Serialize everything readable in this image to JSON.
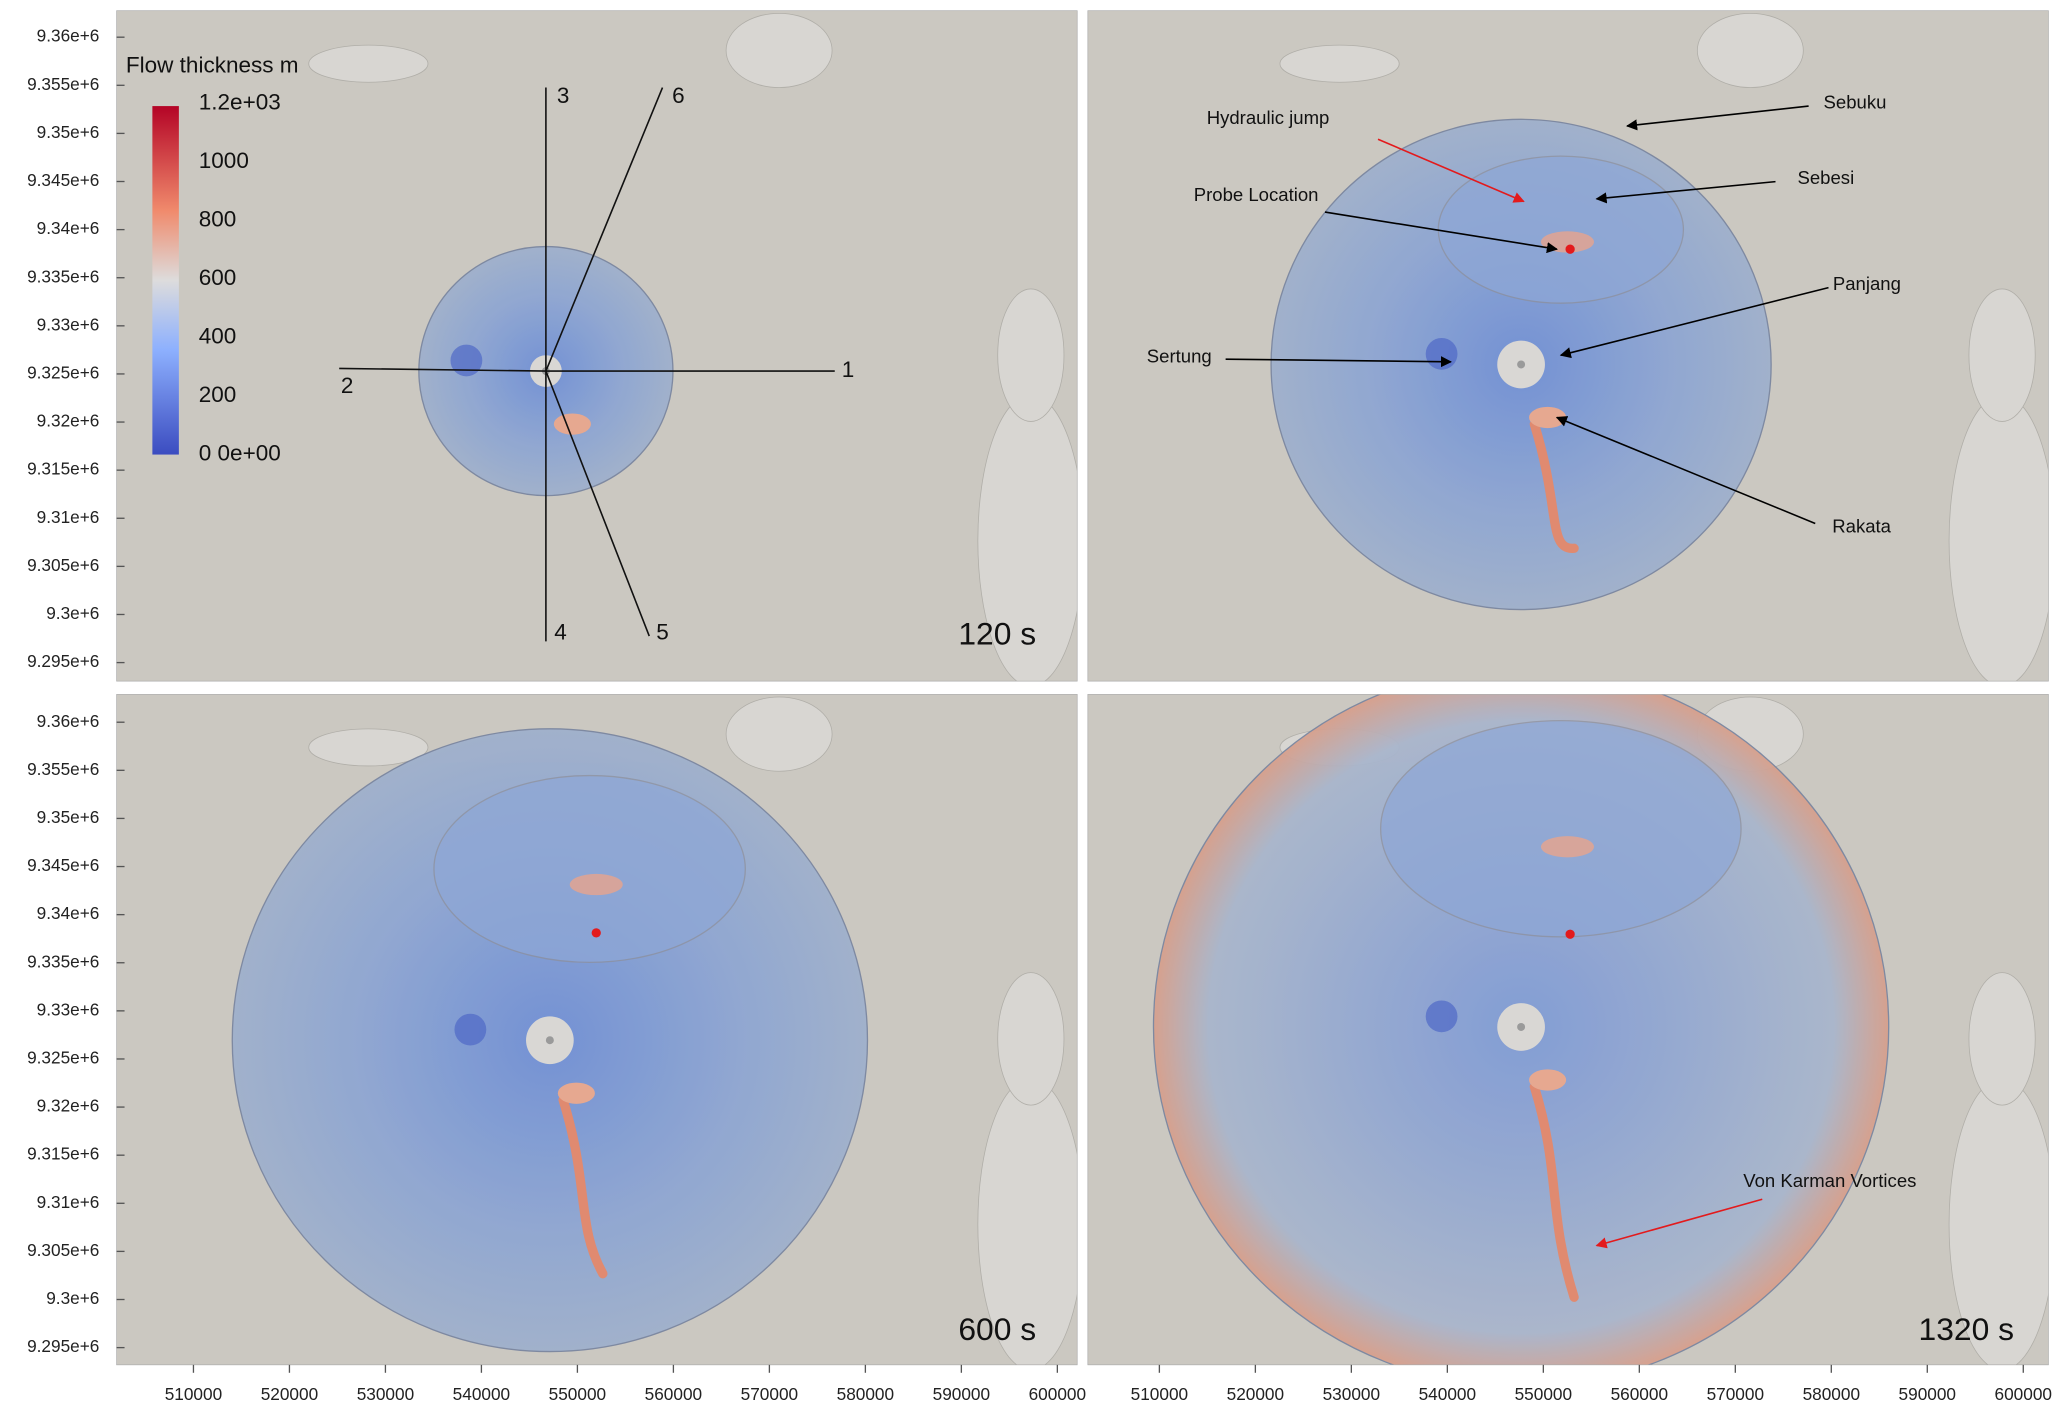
{
  "colorbar": {
    "title": "Flow thickness m",
    "labels": [
      "1.2e+03",
      "1000",
      "800",
      "600",
      "400",
      "200",
      "0 0e+00"
    ]
  },
  "y_ticks": [
    "9.36e+6",
    "9.355e+6",
    "9.35e+6",
    "9.345e+6",
    "9.34e+6",
    "9.335e+6",
    "9.33e+6",
    "9.325e+6",
    "9.32e+6",
    "9.315e+6",
    "9.31e+6",
    "9.305e+6",
    "9.3e+6",
    "9.295e+6"
  ],
  "x_ticks": [
    "510000",
    "520000",
    "530000",
    "540000",
    "550000",
    "560000",
    "570000",
    "580000",
    "590000",
    "600000"
  ],
  "section_lines": [
    "1",
    "2",
    "3",
    "4",
    "5",
    "6"
  ],
  "time_labels": [
    "120 s",
    "600 s",
    "1320 s"
  ],
  "annotations": [
    "Hydraulic jump",
    "Probe Location",
    "Sebuku",
    "Sebesi",
    "Panjang",
    "Sertung",
    "Rakata",
    "Von Karman Vortices"
  ]
}
